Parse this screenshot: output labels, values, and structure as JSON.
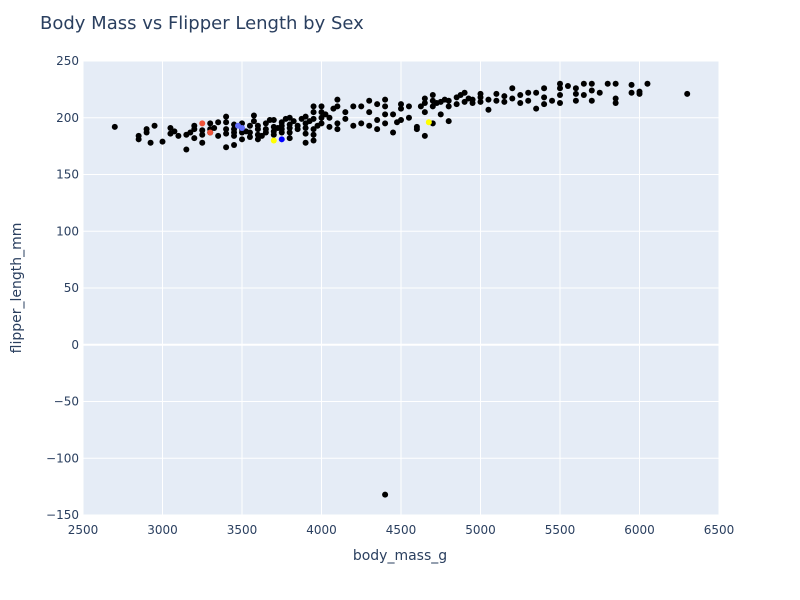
{
  "chart_data": {
    "type": "scatter",
    "title": "Body Mass vs Flipper Length by Sex",
    "xlabel": "body_mass_g",
    "ylabel": "flipper_length_mm",
    "xlim": [
      2500,
      6500
    ],
    "ylim": [
      -150,
      250
    ],
    "xticks": [
      2500,
      3000,
      3500,
      4000,
      4500,
      5000,
      5500,
      6000,
      6500
    ],
    "yticks": [
      -150,
      -100,
      -50,
      0,
      50,
      100,
      150,
      200,
      250
    ],
    "grid": true,
    "legend": "none",
    "colors": {
      "background": "#e5ecf6",
      "grid": "#ffffff",
      "text": "#2a3f5f",
      "marker": "#000000"
    },
    "series": [
      {
        "color": "#000000",
        "points": [
          [
            2700,
            192
          ],
          [
            2850,
            181
          ],
          [
            2850,
            184
          ],
          [
            2900,
            187
          ],
          [
            2900,
            190
          ],
          [
            2925,
            178
          ],
          [
            2950,
            193
          ],
          [
            3000,
            179
          ],
          [
            3050,
            186
          ],
          [
            3050,
            191
          ],
          [
            3075,
            188
          ],
          [
            3100,
            184
          ],
          [
            3150,
            185
          ],
          [
            3150,
            172
          ],
          [
            3175,
            187
          ],
          [
            3200,
            182
          ],
          [
            3200,
            190
          ],
          [
            3200,
            193
          ],
          [
            3250,
            178
          ],
          [
            3250,
            185
          ],
          [
            3250,
            189
          ],
          [
            3300,
            187
          ],
          [
            3300,
            190
          ],
          [
            3300,
            195
          ],
          [
            3325,
            191
          ],
          [
            3350,
            184
          ],
          [
            3350,
            196
          ],
          [
            3400,
            174
          ],
          [
            3400,
            186
          ],
          [
            3400,
            190
          ],
          [
            3400,
            196
          ],
          [
            3400,
            201
          ],
          [
            3450,
            176
          ],
          [
            3450,
            184
          ],
          [
            3450,
            187
          ],
          [
            3450,
            190
          ],
          [
            3450,
            194
          ],
          [
            3500,
            181
          ],
          [
            3500,
            187
          ],
          [
            3500,
            190
          ],
          [
            3500,
            195
          ],
          [
            3525,
            188
          ],
          [
            3550,
            183
          ],
          [
            3550,
            187
          ],
          [
            3550,
            193
          ],
          [
            3575,
            197
          ],
          [
            3575,
            202
          ],
          [
            3600,
            181
          ],
          [
            3600,
            185
          ],
          [
            3600,
            190
          ],
          [
            3600,
            193
          ],
          [
            3625,
            184
          ],
          [
            3650,
            187
          ],
          [
            3650,
            190
          ],
          [
            3650,
            195
          ],
          [
            3675,
            198
          ],
          [
            3700,
            185
          ],
          [
            3700,
            188
          ],
          [
            3700,
            192
          ],
          [
            3700,
            198
          ],
          [
            3725,
            191
          ],
          [
            3750,
            187
          ],
          [
            3750,
            190
          ],
          [
            3750,
            193
          ],
          [
            3750,
            196
          ],
          [
            3775,
            199
          ],
          [
            3800,
            182
          ],
          [
            3800,
            187
          ],
          [
            3800,
            191
          ],
          [
            3800,
            194
          ],
          [
            3800,
            200
          ],
          [
            3825,
            197
          ],
          [
            3850,
            190
          ],
          [
            3850,
            193
          ],
          [
            3875,
            199
          ],
          [
            3900,
            178
          ],
          [
            3900,
            186
          ],
          [
            3900,
            191
          ],
          [
            3900,
            195
          ],
          [
            3900,
            201
          ],
          [
            3925,
            197
          ],
          [
            3950,
            180
          ],
          [
            3950,
            185
          ],
          [
            3950,
            190
          ],
          [
            3950,
            199
          ],
          [
            3975,
            193
          ],
          [
            3950,
            205
          ],
          [
            3950,
            210
          ],
          [
            4000,
            195
          ],
          [
            4000,
            200
          ],
          [
            4000,
            205
          ],
          [
            4000,
            210
          ],
          [
            4025,
            203
          ],
          [
            4050,
            192
          ],
          [
            4050,
            200
          ],
          [
            4075,
            208
          ],
          [
            4100,
            190
          ],
          [
            4100,
            195
          ],
          [
            4100,
            210
          ],
          [
            4100,
            216
          ],
          [
            4150,
            199
          ],
          [
            4150,
            205
          ],
          [
            4200,
            193
          ],
          [
            4200,
            210
          ],
          [
            4250,
            195
          ],
          [
            4250,
            210
          ],
          [
            4300,
            193
          ],
          [
            4300,
            205
          ],
          [
            4300,
            215
          ],
          [
            4350,
            190
          ],
          [
            4350,
            198
          ],
          [
            4350,
            212
          ],
          [
            4400,
            195
          ],
          [
            4400,
            203
          ],
          [
            4400,
            210
          ],
          [
            4400,
            216
          ],
          [
            4400,
            -132
          ],
          [
            4450,
            187
          ],
          [
            4450,
            203
          ],
          [
            4475,
            196
          ],
          [
            4500,
            198
          ],
          [
            4500,
            208
          ],
          [
            4500,
            212
          ],
          [
            4550,
            200
          ],
          [
            4550,
            210
          ],
          [
            4600,
            190
          ],
          [
            4600,
            192
          ],
          [
            4625,
            210
          ],
          [
            4650,
            184
          ],
          [
            4650,
            205
          ],
          [
            4650,
            213
          ],
          [
            4650,
            217
          ],
          [
            4700,
            195
          ],
          [
            4700,
            210
          ],
          [
            4700,
            215
          ],
          [
            4700,
            220
          ],
          [
            4725,
            213
          ],
          [
            4750,
            203
          ],
          [
            4750,
            214
          ],
          [
            4775,
            216
          ],
          [
            4800,
            197
          ],
          [
            4800,
            210
          ],
          [
            4800,
            215
          ],
          [
            4850,
            212
          ],
          [
            4850,
            218
          ],
          [
            4875,
            220
          ],
          [
            4900,
            214
          ],
          [
            4900,
            222
          ],
          [
            4925,
            217
          ],
          [
            4950,
            213
          ],
          [
            4950,
            216
          ],
          [
            5000,
            214
          ],
          [
            5000,
            218
          ],
          [
            5000,
            221
          ],
          [
            5050,
            207
          ],
          [
            5050,
            216
          ],
          [
            5100,
            215
          ],
          [
            5100,
            221
          ],
          [
            5150,
            214
          ],
          [
            5150,
            219
          ],
          [
            5200,
            217
          ],
          [
            5200,
            226
          ],
          [
            5250,
            213
          ],
          [
            5250,
            220
          ],
          [
            5300,
            215
          ],
          [
            5300,
            222
          ],
          [
            5350,
            208
          ],
          [
            5350,
            222
          ],
          [
            5400,
            212
          ],
          [
            5400,
            218
          ],
          [
            5400,
            226
          ],
          [
            5450,
            215
          ],
          [
            5500,
            213
          ],
          [
            5500,
            220
          ],
          [
            5500,
            226
          ],
          [
            5500,
            230
          ],
          [
            5550,
            228
          ],
          [
            5600,
            215
          ],
          [
            5600,
            221
          ],
          [
            5600,
            226
          ],
          [
            5650,
            220
          ],
          [
            5650,
            230
          ],
          [
            5700,
            215
          ],
          [
            5700,
            224
          ],
          [
            5700,
            230
          ],
          [
            5750,
            222
          ],
          [
            5800,
            230
          ],
          [
            5850,
            213
          ],
          [
            5850,
            217
          ],
          [
            5850,
            230
          ],
          [
            5950,
            222
          ],
          [
            5950,
            229
          ],
          [
            6000,
            221
          ],
          [
            6000,
            223
          ],
          [
            6050,
            230
          ],
          [
            6300,
            221
          ]
        ]
      },
      {
        "color": "#ef553b",
        "points": [
          [
            3250,
            195
          ],
          [
            3300,
            187
          ]
        ]
      },
      {
        "color": "#636efa",
        "points": [
          [
            3475,
            193
          ],
          [
            3500,
            191
          ]
        ]
      },
      {
        "color": "#0000ff",
        "points": [
          [
            3750,
            181
          ]
        ]
      },
      {
        "color": "#ffff00",
        "points": [
          [
            3700,
            180
          ],
          [
            4675,
            196
          ]
        ]
      }
    ]
  }
}
